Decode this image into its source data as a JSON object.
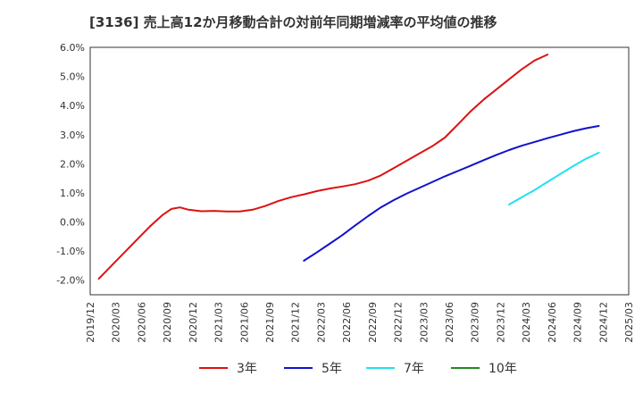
{
  "chart_data": {
    "type": "line",
    "title": "[3136]  売上高12か月移動合計の対前年同期増減率の平均値の推移",
    "xlabel": "",
    "ylabel": "",
    "ylim": [
      -2.5,
      6.0
    ],
    "y_ticks": [
      6.0,
      5.0,
      4.0,
      3.0,
      2.0,
      1.0,
      0.0,
      -1.0,
      -2.0
    ],
    "y_tick_labels": [
      "6.0%",
      "5.0%",
      "4.0%",
      "3.0%",
      "2.0%",
      "1.0%",
      "0.0%",
      "-1.0%",
      "-2.0%"
    ],
    "x_tick_labels": [
      "2019/12",
      "2020/03",
      "2020/06",
      "2020/09",
      "2020/12",
      "2021/03",
      "2021/06",
      "2021/09",
      "2021/12",
      "2022/03",
      "2022/06",
      "2022/09",
      "2022/12",
      "2023/03",
      "2023/06",
      "2023/09",
      "2023/12",
      "2024/03",
      "2024/06",
      "2024/09",
      "2024/12",
      "2025/03"
    ],
    "grid": true,
    "legend_position": "bottom",
    "series": [
      {
        "name": "3年",
        "color": "#dd1111",
        "points": [
          [
            2,
            -1.95
          ],
          [
            5,
            -1.5
          ],
          [
            8,
            -1.05
          ],
          [
            11,
            -0.6
          ],
          [
            14,
            -0.15
          ],
          [
            17,
            0.25
          ],
          [
            19,
            0.45
          ],
          [
            21,
            0.5
          ],
          [
            23,
            0.42
          ],
          [
            26,
            0.37
          ],
          [
            29,
            0.38
          ],
          [
            32,
            0.36
          ],
          [
            35,
            0.36
          ],
          [
            38,
            0.42
          ],
          [
            41,
            0.55
          ],
          [
            44,
            0.72
          ],
          [
            47,
            0.85
          ],
          [
            50,
            0.95
          ],
          [
            53,
            1.06
          ],
          [
            56,
            1.15
          ],
          [
            59,
            1.22
          ],
          [
            62,
            1.3
          ],
          [
            65,
            1.42
          ],
          [
            68,
            1.6
          ],
          [
            71,
            1.85
          ],
          [
            74,
            2.1
          ],
          [
            77,
            2.35
          ],
          [
            80,
            2.6
          ],
          [
            83,
            2.9
          ],
          [
            86,
            3.35
          ],
          [
            89,
            3.8
          ],
          [
            92,
            4.2
          ],
          [
            95,
            4.55
          ],
          [
            98,
            4.9
          ],
          [
            101,
            5.25
          ],
          [
            104,
            5.55
          ],
          [
            107,
            5.75
          ]
        ]
      },
      {
        "name": "5年",
        "color": "#1111cc",
        "points": [
          [
            50,
            -1.33
          ],
          [
            53,
            -1.05
          ],
          [
            56,
            -0.75
          ],
          [
            59,
            -0.45
          ],
          [
            62,
            -0.12
          ],
          [
            65,
            0.2
          ],
          [
            68,
            0.5
          ],
          [
            71,
            0.75
          ],
          [
            74,
            0.97
          ],
          [
            77,
            1.17
          ],
          [
            80,
            1.37
          ],
          [
            83,
            1.57
          ],
          [
            86,
            1.75
          ],
          [
            89,
            1.93
          ],
          [
            92,
            2.12
          ],
          [
            95,
            2.3
          ],
          [
            98,
            2.47
          ],
          [
            101,
            2.62
          ],
          [
            104,
            2.75
          ],
          [
            107,
            2.88
          ],
          [
            110,
            3.0
          ],
          [
            113,
            3.12
          ],
          [
            116,
            3.22
          ],
          [
            119,
            3.3
          ]
        ]
      },
      {
        "name": "7年",
        "color": "#22e0f0",
        "points": [
          [
            98,
            0.6
          ],
          [
            101,
            0.85
          ],
          [
            104,
            1.1
          ],
          [
            107,
            1.38
          ],
          [
            110,
            1.65
          ],
          [
            113,
            1.92
          ],
          [
            116,
            2.17
          ],
          [
            119,
            2.38
          ]
        ]
      },
      {
        "name": "10年",
        "color": "#228822",
        "points": []
      }
    ]
  }
}
